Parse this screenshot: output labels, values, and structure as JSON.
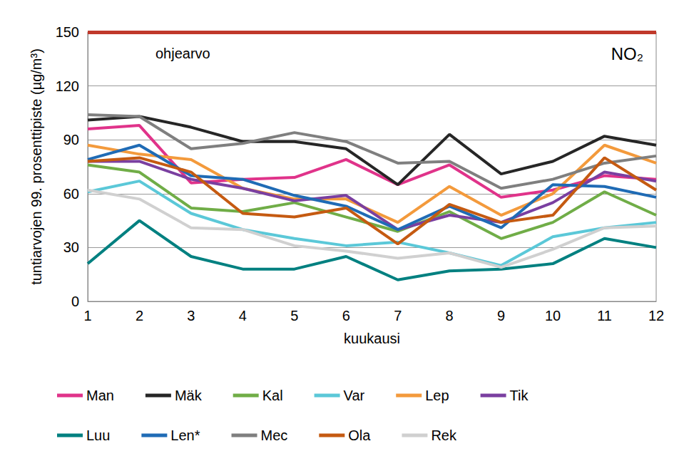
{
  "chart_data": {
    "type": "line",
    "title": "NO₂",
    "x_label": "kuukausi",
    "y_label": "tuntiarvojen 99. prosenttipiste (µg/m³)",
    "categories": [
      "1",
      "2",
      "3",
      "4",
      "5",
      "6",
      "7",
      "8",
      "9",
      "10",
      "11",
      "12"
    ],
    "ylim": [
      0,
      150
    ],
    "yticks": [
      0,
      30,
      60,
      90,
      120,
      150
    ],
    "grid": true,
    "legend": "bottom",
    "guideline": {
      "label": "ohjearvo",
      "value": 150,
      "color": "#c0392b"
    },
    "series": [
      {
        "name": "Man",
        "color": "#e0338a",
        "values": [
          96,
          98,
          66,
          68,
          69,
          79,
          65,
          76,
          58,
          62,
          70,
          68
        ]
      },
      {
        "name": "Mäk",
        "color": "#262626",
        "values": [
          101,
          103,
          97,
          89,
          89,
          85,
          65,
          93,
          71,
          78,
          92,
          87
        ]
      },
      {
        "name": "Kal",
        "color": "#70ad47",
        "values": [
          76,
          72,
          52,
          50,
          55,
          47,
          39,
          50,
          35,
          44,
          61,
          48
        ]
      },
      {
        "name": "Var",
        "color": "#5bc8d8",
        "values": [
          61,
          67,
          49,
          40,
          35,
          31,
          33,
          27,
          20,
          36,
          41,
          44
        ]
      },
      {
        "name": "Lep",
        "color": "#f39a3c",
        "values": [
          87,
          82,
          79,
          63,
          57,
          57,
          44,
          64,
          48,
          60,
          87,
          77
        ]
      },
      {
        "name": "Tik",
        "color": "#7a3fa0",
        "values": [
          78,
          78,
          68,
          63,
          56,
          59,
          40,
          48,
          44,
          55,
          72,
          67
        ]
      },
      {
        "name": "Luu",
        "color": "#008080",
        "values": [
          21,
          45,
          25,
          18,
          18,
          25,
          12,
          17,
          18,
          21,
          35,
          30
        ]
      },
      {
        "name": "Len*",
        "color": "#1f6bb5",
        "values": [
          79,
          87,
          70,
          68,
          59,
          53,
          40,
          53,
          41,
          65,
          64,
          58
        ]
      },
      {
        "name": "Mec",
        "color": "#7f7f7f",
        "values": [
          104,
          103,
          85,
          88,
          94,
          89,
          77,
          78,
          63,
          68,
          77,
          81
        ]
      },
      {
        "name": "Ola",
        "color": "#c55a11",
        "values": [
          78,
          80,
          72,
          49,
          47,
          52,
          32,
          54,
          44,
          48,
          80,
          62
        ]
      },
      {
        "name": "Rek",
        "color": "#d0d0d0",
        "values": [
          62,
          57,
          41,
          40,
          31,
          28,
          24,
          27,
          19,
          29,
          41,
          42
        ]
      }
    ]
  }
}
